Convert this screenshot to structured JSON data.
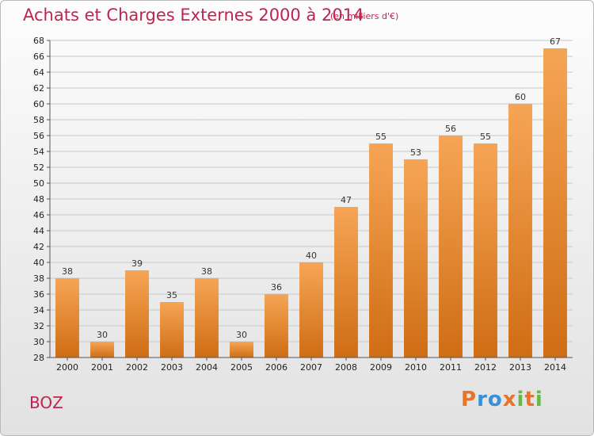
{
  "title": "Achats et Charges Externes 2000 à 2014",
  "subtitle": "(en milliers d'€)",
  "place": "BOZ",
  "logo": {
    "letters": [
      "P",
      "r",
      "o",
      "x",
      "i",
      "t",
      "i"
    ],
    "colors": [
      "#e8732a",
      "#3a8fd9",
      "#3a8fd9",
      "#e8732a",
      "#6bb64a",
      "#e8732a",
      "#6bb64a"
    ]
  },
  "colors": {
    "bar_top": "#f6a555",
    "bar_bottom": "#cf6d14",
    "grid": "#c8c8c8"
  },
  "chart_data": {
    "type": "bar",
    "title": "Achats et Charges Externes 2000 à 2014",
    "xlabel": "",
    "ylabel": "",
    "ylim": [
      28,
      68
    ],
    "ytick_step": 2,
    "grid": true,
    "categories": [
      "2000",
      "2001",
      "2002",
      "2003",
      "2004",
      "2005",
      "2006",
      "2007",
      "2008",
      "2009",
      "2010",
      "2011",
      "2012",
      "2013",
      "2014"
    ],
    "values": [
      38,
      30,
      39,
      35,
      38,
      30,
      36,
      40,
      47,
      55,
      53,
      56,
      55,
      60,
      67
    ]
  }
}
